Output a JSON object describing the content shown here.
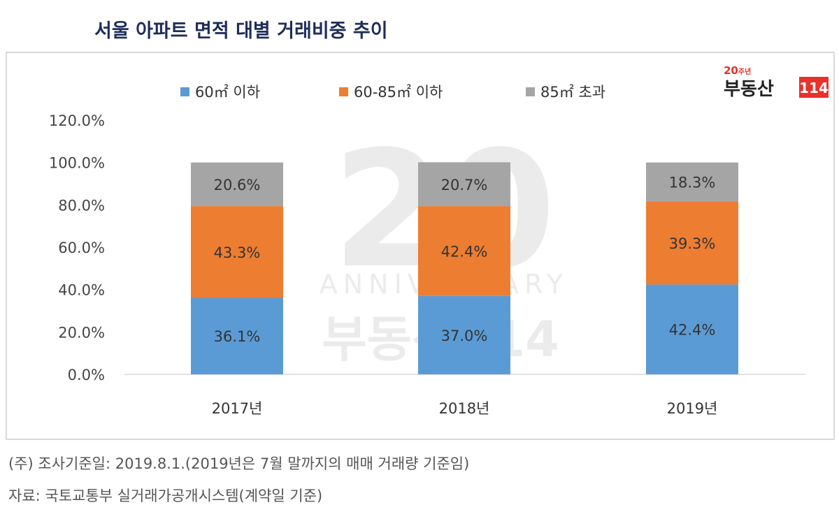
{
  "title": "서울 아파트 면적 대별 거래비중 추이",
  "logo": {
    "text": "20주년 부동산114",
    "accent": "#e8312a"
  },
  "watermark": "20th ANNIVERSARY 부동산114",
  "notes": [
    "(주) 조사기준일: 2019.8.1.(2019년은 7월 말까지의 매매 거래량 기준임)",
    "자료: 국토교통부 실거래가공개시스템(계약일 기준)"
  ],
  "chart_data": {
    "type": "bar",
    "stacked": true,
    "categories": [
      "2017년",
      "2018년",
      "2019년"
    ],
    "series": [
      {
        "name": "60㎡ 이하",
        "color": "#5b9bd5",
        "values": [
          36.1,
          37.0,
          42.4
        ],
        "labels": [
          "36.1%",
          "37.0%",
          "42.4%"
        ]
      },
      {
        "name": "60-85㎡ 이하",
        "color": "#ed7d31",
        "values": [
          43.3,
          42.4,
          39.3
        ],
        "labels": [
          "43.3%",
          "42.4%",
          "39.3%"
        ]
      },
      {
        "name": "85㎡ 초과",
        "color": "#a5a5a5",
        "values": [
          20.6,
          20.7,
          18.3
        ],
        "labels": [
          "20.6%",
          "20.7%",
          "18.3%"
        ]
      }
    ],
    "ylim": [
      0,
      120
    ],
    "yticks": [
      "0.0%",
      "20.0%",
      "40.0%",
      "60.0%",
      "80.0%",
      "100.0%",
      "120.0%"
    ],
    "grid": false,
    "legend": "top"
  }
}
